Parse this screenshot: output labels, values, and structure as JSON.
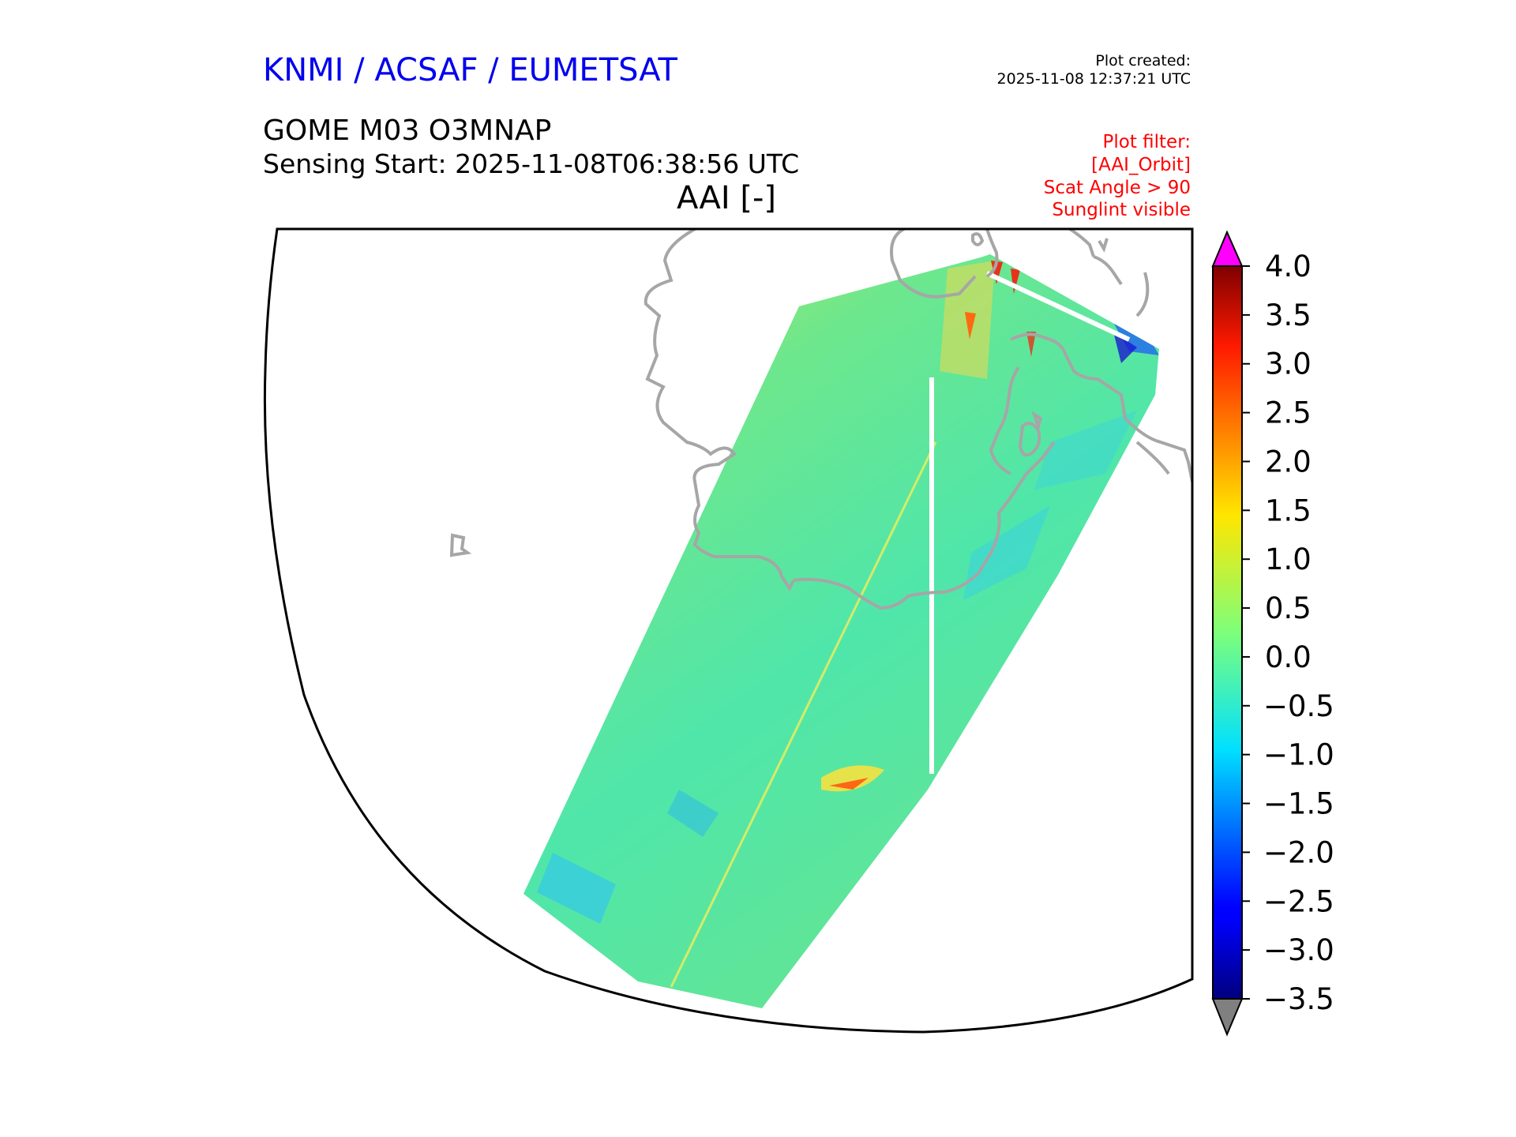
{
  "header": {
    "organization": "KNMI / ACSAF / EUMETSAT",
    "created_label": "Plot created:",
    "created_value": "2025-11-08 12:37:21 UTC",
    "product": "GOME M03 O3MNAP",
    "sensing": "Sensing Start: 2025-11-08T06:38:56 UTC",
    "variable": "AAI [-]"
  },
  "filters": [
    "Plot filter:",
    "[AAI_Orbit]",
    "Scat Angle > 90",
    "Sunglint visible"
  ],
  "colorbar": {
    "ticks": [
      "4.0",
      "3.5",
      "3.0",
      "2.5",
      "2.0",
      "1.5",
      "1.0",
      "0.5",
      "0.0",
      "−0.5",
      "−1.0",
      "−1.5",
      "−2.0",
      "−2.5",
      "−3.0",
      "−3.5"
    ],
    "min": -3.5,
    "max": 4.0,
    "over_color": "#ff00ff",
    "under_color": "#808080"
  },
  "colors": {
    "coastline": "#a6a6a6",
    "frame": "#000000",
    "swath_base": "#52e6a0"
  }
}
